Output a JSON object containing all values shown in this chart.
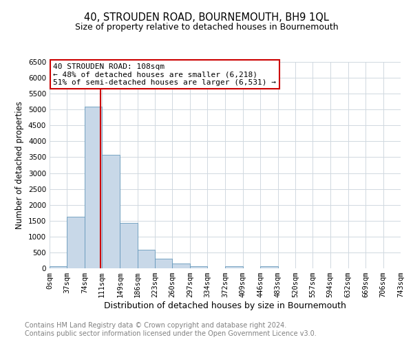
{
  "title": "40, STROUDEN ROAD, BOURNEMOUTH, BH9 1QL",
  "subtitle": "Size of property relative to detached houses in Bournemouth",
  "xlabel": "Distribution of detached houses by size in Bournemouth",
  "ylabel": "Number of detached properties",
  "bin_edges": [
    0,
    37,
    74,
    111,
    149,
    186,
    223,
    260,
    297,
    334,
    372,
    409,
    446,
    483,
    520,
    557,
    594,
    632,
    669,
    706,
    743
  ],
  "bar_heights": [
    65,
    1620,
    5090,
    3580,
    1420,
    585,
    305,
    150,
    70,
    0,
    70,
    0,
    65,
    0,
    0,
    0,
    0,
    0,
    0,
    0
  ],
  "bar_color": "#c8d8e8",
  "bar_edge_color": "#6699bb",
  "vline_x": 108,
  "vline_color": "#cc0000",
  "ylim": [
    0,
    6500
  ],
  "yticks": [
    0,
    500,
    1000,
    1500,
    2000,
    2500,
    3000,
    3500,
    4000,
    4500,
    5000,
    5500,
    6000,
    6500
  ],
  "annotation_title": "40 STROUDEN ROAD: 108sqm",
  "annotation_line1": "← 48% of detached houses are smaller (6,218)",
  "annotation_line2": "51% of semi-detached houses are larger (6,531) →",
  "annotation_box_color": "#ffffff",
  "annotation_box_edge": "#cc0000",
  "footer_line1": "Contains HM Land Registry data © Crown copyright and database right 2024.",
  "footer_line2": "Contains public sector information licensed under the Open Government Licence v3.0.",
  "bg_color": "#ffffff",
  "grid_color": "#d0d8e0",
  "title_fontsize": 10.5,
  "subtitle_fontsize": 9,
  "xlabel_fontsize": 9,
  "ylabel_fontsize": 8.5,
  "tick_label_fontsize": 7.5,
  "annot_fontsize": 8,
  "footer_fontsize": 7
}
